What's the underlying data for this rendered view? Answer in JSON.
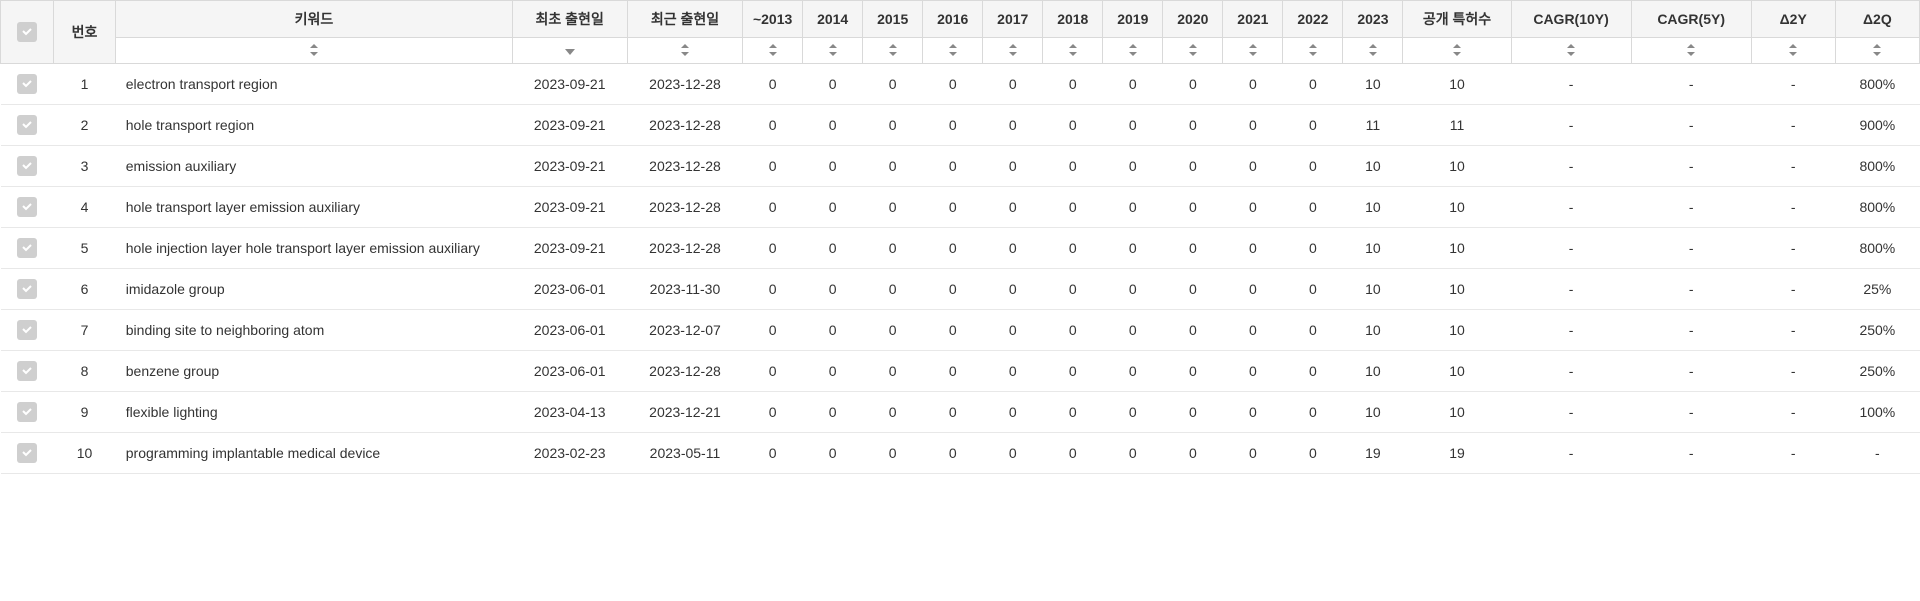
{
  "colors": {
    "header_bg": "#f5f5f5",
    "border": "#d9d9d9",
    "row_border": "#e8e8e8",
    "text": "#333333",
    "checkbox_bg": "#cfcfcf",
    "checkbox_icon": "#ffffff",
    "sort_icon": "#888888"
  },
  "columns": {
    "checkbox": "",
    "no": "번호",
    "keyword": "키워드",
    "first_date": "최초 출현일",
    "last_date": "최근 출현일",
    "y2013": "~2013",
    "y2014": "2014",
    "y2015": "2015",
    "y2016": "2016",
    "y2017": "2017",
    "y2018": "2018",
    "y2019": "2019",
    "y2020": "2020",
    "y2021": "2021",
    "y2022": "2022",
    "y2023": "2023",
    "pub_count": "공개 특허수",
    "cagr10": "CAGR(10Y)",
    "cagr5": "CAGR(5Y)",
    "d2y": "Δ2Y",
    "d2q": "Δ2Q"
  },
  "rows": [
    {
      "no": "1",
      "keyword": "electron transport region",
      "first": "2023-09-21",
      "last": "2023-12-28",
      "y2013": "0",
      "y2014": "0",
      "y2015": "0",
      "y2016": "0",
      "y2017": "0",
      "y2018": "0",
      "y2019": "0",
      "y2020": "0",
      "y2021": "0",
      "y2022": "0",
      "y2023": "10",
      "pub": "10",
      "cagr10": "-",
      "cagr5": "-",
      "d2y": "-",
      "d2q": "800%"
    },
    {
      "no": "2",
      "keyword": "hole transport region",
      "first": "2023-09-21",
      "last": "2023-12-28",
      "y2013": "0",
      "y2014": "0",
      "y2015": "0",
      "y2016": "0",
      "y2017": "0",
      "y2018": "0",
      "y2019": "0",
      "y2020": "0",
      "y2021": "0",
      "y2022": "0",
      "y2023": "11",
      "pub": "11",
      "cagr10": "-",
      "cagr5": "-",
      "d2y": "-",
      "d2q": "900%"
    },
    {
      "no": "3",
      "keyword": "emission auxiliary",
      "first": "2023-09-21",
      "last": "2023-12-28",
      "y2013": "0",
      "y2014": "0",
      "y2015": "0",
      "y2016": "0",
      "y2017": "0",
      "y2018": "0",
      "y2019": "0",
      "y2020": "0",
      "y2021": "0",
      "y2022": "0",
      "y2023": "10",
      "pub": "10",
      "cagr10": "-",
      "cagr5": "-",
      "d2y": "-",
      "d2q": "800%"
    },
    {
      "no": "4",
      "keyword": "hole transport layer emission auxiliary",
      "first": "2023-09-21",
      "last": "2023-12-28",
      "y2013": "0",
      "y2014": "0",
      "y2015": "0",
      "y2016": "0",
      "y2017": "0",
      "y2018": "0",
      "y2019": "0",
      "y2020": "0",
      "y2021": "0",
      "y2022": "0",
      "y2023": "10",
      "pub": "10",
      "cagr10": "-",
      "cagr5": "-",
      "d2y": "-",
      "d2q": "800%"
    },
    {
      "no": "5",
      "keyword": "hole injection layer hole transport layer emission auxiliary",
      "first": "2023-09-21",
      "last": "2023-12-28",
      "y2013": "0",
      "y2014": "0",
      "y2015": "0",
      "y2016": "0",
      "y2017": "0",
      "y2018": "0",
      "y2019": "0",
      "y2020": "0",
      "y2021": "0",
      "y2022": "0",
      "y2023": "10",
      "pub": "10",
      "cagr10": "-",
      "cagr5": "-",
      "d2y": "-",
      "d2q": "800%"
    },
    {
      "no": "6",
      "keyword": "imidazole group",
      "first": "2023-06-01",
      "last": "2023-11-30",
      "y2013": "0",
      "y2014": "0",
      "y2015": "0",
      "y2016": "0",
      "y2017": "0",
      "y2018": "0",
      "y2019": "0",
      "y2020": "0",
      "y2021": "0",
      "y2022": "0",
      "y2023": "10",
      "pub": "10",
      "cagr10": "-",
      "cagr5": "-",
      "d2y": "-",
      "d2q": "25%"
    },
    {
      "no": "7",
      "keyword": "binding site to neighboring atom",
      "first": "2023-06-01",
      "last": "2023-12-07",
      "y2013": "0",
      "y2014": "0",
      "y2015": "0",
      "y2016": "0",
      "y2017": "0",
      "y2018": "0",
      "y2019": "0",
      "y2020": "0",
      "y2021": "0",
      "y2022": "0",
      "y2023": "10",
      "pub": "10",
      "cagr10": "-",
      "cagr5": "-",
      "d2y": "-",
      "d2q": "250%"
    },
    {
      "no": "8",
      "keyword": "benzene group",
      "first": "2023-06-01",
      "last": "2023-12-28",
      "y2013": "0",
      "y2014": "0",
      "y2015": "0",
      "y2016": "0",
      "y2017": "0",
      "y2018": "0",
      "y2019": "0",
      "y2020": "0",
      "y2021": "0",
      "y2022": "0",
      "y2023": "10",
      "pub": "10",
      "cagr10": "-",
      "cagr5": "-",
      "d2y": "-",
      "d2q": "250%"
    },
    {
      "no": "9",
      "keyword": "flexible lighting",
      "first": "2023-04-13",
      "last": "2023-12-21",
      "y2013": "0",
      "y2014": "0",
      "y2015": "0",
      "y2016": "0",
      "y2017": "0",
      "y2018": "0",
      "y2019": "0",
      "y2020": "0",
      "y2021": "0",
      "y2022": "0",
      "y2023": "10",
      "pub": "10",
      "cagr10": "-",
      "cagr5": "-",
      "d2y": "-",
      "d2q": "100%"
    },
    {
      "no": "10",
      "keyword": "programming implantable medical device",
      "first": "2023-02-23",
      "last": "2023-05-11",
      "y2013": "0",
      "y2014": "0",
      "y2015": "0",
      "y2016": "0",
      "y2017": "0",
      "y2018": "0",
      "y2019": "0",
      "y2020": "0",
      "y2021": "0",
      "y2022": "0",
      "y2023": "19",
      "pub": "19",
      "cagr10": "-",
      "cagr5": "-",
      "d2y": "-",
      "d2q": "-"
    }
  ]
}
